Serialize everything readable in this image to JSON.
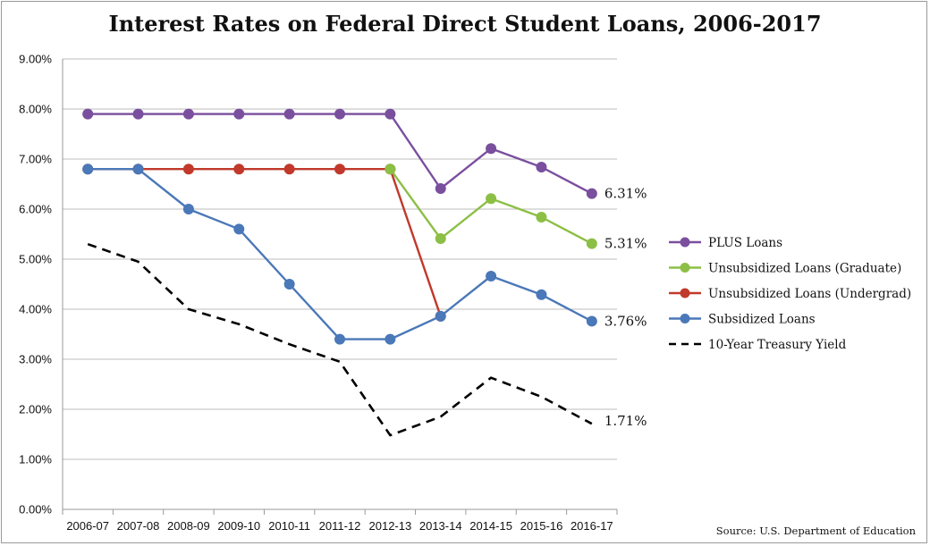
{
  "chart_data": {
    "type": "line",
    "title": "Interest Rates on Federal Direct Student Loans, 2006-2017",
    "source": "Source: U.S. Department of Education",
    "xlabel": "",
    "ylabel": "",
    "categories": [
      "2006-07",
      "2007-08",
      "2008-09",
      "2009-10",
      "2010-11",
      "2011-12",
      "2012-13",
      "2013-14",
      "2014-15",
      "2015-16",
      "2016-17"
    ],
    "ylim": [
      0,
      9
    ],
    "y_ticks": [
      0,
      1,
      2,
      3,
      4,
      5,
      6,
      7,
      8,
      9
    ],
    "y_tick_labels": [
      "0.00%",
      "1.00%",
      "2.00%",
      "3.00%",
      "4.00%",
      "5.00%",
      "6.00%",
      "7.00%",
      "8.00%",
      "9.00%"
    ],
    "grid": "horizontal",
    "legend_position": "right",
    "series": [
      {
        "name": "PLUS Loans",
        "color": "#7a4f9e",
        "style": "solid",
        "markers": true,
        "values": [
          7.9,
          7.9,
          7.9,
          7.9,
          7.9,
          7.9,
          7.9,
          6.41,
          7.21,
          6.84,
          6.31
        ]
      },
      {
        "name": "Unsubsidized Loans (Graduate)",
        "color": "#8cbf45",
        "style": "solid",
        "markers": true,
        "values": [
          null,
          null,
          null,
          null,
          null,
          null,
          6.8,
          5.41,
          6.21,
          5.84,
          5.31
        ]
      },
      {
        "name": "Unsubsidized Loans (Undergrad)",
        "color": "#c0392b",
        "style": "solid",
        "markers": true,
        "values": [
          6.8,
          6.8,
          6.8,
          6.8,
          6.8,
          6.8,
          6.8,
          3.86,
          null,
          null,
          null
        ]
      },
      {
        "name": "Subsidized Loans",
        "color": "#4a78b8",
        "style": "solid",
        "markers": true,
        "values": [
          6.8,
          6.8,
          6.0,
          5.6,
          4.5,
          3.4,
          3.4,
          3.86,
          4.66,
          4.29,
          3.76
        ]
      },
      {
        "name": "10-Year Treasury Yield",
        "color": "#000000",
        "style": "dashed",
        "markers": false,
        "values": [
          5.3,
          4.95,
          4.0,
          3.7,
          3.3,
          2.95,
          1.48,
          1.85,
          2.63,
          2.25,
          1.71
        ]
      }
    ],
    "annotations": [
      "6.31%",
      "5.31%",
      "3.76%",
      "1.71%"
    ]
  }
}
